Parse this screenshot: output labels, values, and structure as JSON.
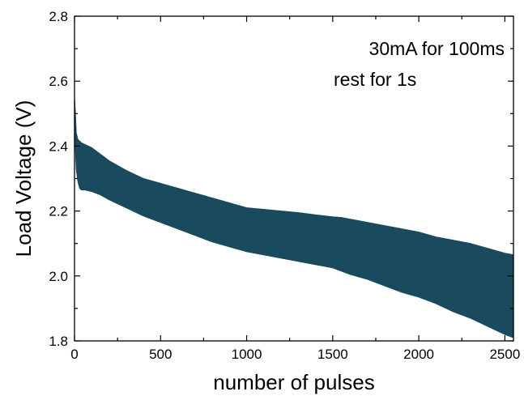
{
  "chart_data": {
    "type": "area",
    "title": "",
    "xlabel": "number of pulses",
    "ylabel": "Load Voltage (V)",
    "xlim": [
      0,
      2550
    ],
    "ylim": [
      1.8,
      2.8
    ],
    "x_ticks": [
      0,
      500,
      1000,
      1500,
      2000,
      2500
    ],
    "x_tick_labels": [
      "0",
      "500",
      "1000",
      "1500",
      "2000",
      "2500"
    ],
    "y_ticks": [
      1.8,
      2.0,
      2.2,
      2.4,
      2.6,
      2.8
    ],
    "y_tick_labels": [
      "1.8",
      "2.0",
      "2.2",
      "2.4",
      "2.6",
      "2.8"
    ],
    "grid": false,
    "legend": false,
    "annotations": [
      "30mA for 100ms",
      "rest for 1s"
    ],
    "color": "#1a4a5e",
    "series": [
      {
        "role": "upper envelope (rest voltage)",
        "x": [
          0,
          5,
          10,
          20,
          40,
          60,
          100,
          150,
          200,
          300,
          400,
          500,
          600,
          700,
          800,
          900,
          1000,
          1100,
          1200,
          1300,
          1400,
          1500,
          1550,
          1600,
          1700,
          1800,
          1900,
          2000,
          2100,
          2200,
          2300,
          2400,
          2500,
          2550
        ],
        "values": [
          2.55,
          2.5,
          2.44,
          2.42,
          2.41,
          2.405,
          2.395,
          2.375,
          2.355,
          2.325,
          2.3,
          2.285,
          2.27,
          2.255,
          2.24,
          2.225,
          2.21,
          2.205,
          2.2,
          2.195,
          2.188,
          2.182,
          2.18,
          2.175,
          2.165,
          2.155,
          2.145,
          2.135,
          2.12,
          2.11,
          2.1,
          2.085,
          2.07,
          2.065
        ]
      },
      {
        "role": "lower envelope (load voltage)",
        "x": [
          0,
          5,
          10,
          20,
          30,
          40,
          60,
          100,
          150,
          200,
          300,
          400,
          500,
          600,
          700,
          800,
          900,
          1000,
          1100,
          1200,
          1300,
          1400,
          1500,
          1600,
          1700,
          1800,
          1900,
          2000,
          2100,
          2200,
          2300,
          2400,
          2500,
          2550
        ],
        "values": [
          2.47,
          2.4,
          2.33,
          2.29,
          2.27,
          2.265,
          2.265,
          2.26,
          2.25,
          2.235,
          2.21,
          2.185,
          2.165,
          2.145,
          2.125,
          2.105,
          2.09,
          2.075,
          2.065,
          2.055,
          2.045,
          2.035,
          2.025,
          2.005,
          1.99,
          1.97,
          1.95,
          1.935,
          1.915,
          1.89,
          1.87,
          1.845,
          1.82,
          1.81
        ]
      }
    ]
  }
}
